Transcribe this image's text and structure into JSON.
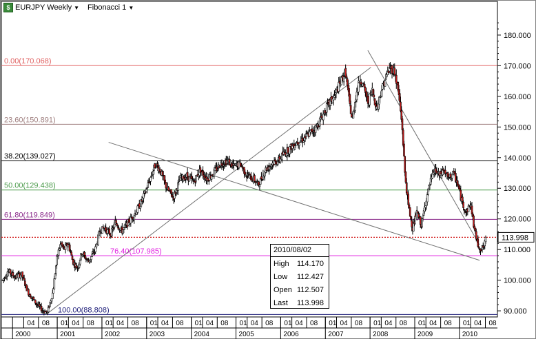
{
  "toolbar": {
    "symbol_label": "EURJPY Weekly",
    "study_label": "Fibonacci 1"
  },
  "colors": {
    "up_candle": "#ffffff",
    "down_candle": "#c81e1e",
    "fib_0": "#e06060",
    "fib_236": "#a08080",
    "fib_382": "#000000",
    "fib_50": "#4a9a4a",
    "fib_618": "#8a2a8a",
    "fib_764": "#e020e0",
    "fib_100": "#20207a",
    "last_price": "#d01010"
  },
  "infobox": {
    "date": "2010/08/02",
    "high_label": "High",
    "high": "114.170",
    "low_label": "Low",
    "low": "112.427",
    "open_label": "Open",
    "open": "112.507",
    "last_label": "Last",
    "last": "113.998"
  },
  "chart_data": {
    "type": "candlestick",
    "ylim": [
      88,
      191
    ],
    "x_range": [
      1999.75,
      2010.85
    ],
    "yticks": [
      90,
      100,
      110,
      120,
      130,
      140,
      150,
      160,
      170,
      180
    ],
    "ytick_labels": [
      "90.000",
      "100.000",
      "110.000",
      "120.000",
      "130.000",
      "140.000",
      "150.000",
      "160.000",
      "170.000",
      "180.000"
    ],
    "last_price": 113.998,
    "last_price_label": "113.998",
    "fib_levels": [
      {
        "label": "0.00(170.068)",
        "value": 170.068
      },
      {
        "label": "23.60(150.891)",
        "value": 150.891
      },
      {
        "label": "38.20(139.027)",
        "value": 139.027
      },
      {
        "label": "50.00(129.438)",
        "value": 129.438
      },
      {
        "label": "61.80(119.849)",
        "value": 119.849
      },
      {
        "label": "76.40(107.985)",
        "value": 107.985
      },
      {
        "label": "100.00(88.808)",
        "value": 88.808
      }
    ],
    "trendlines": [
      {
        "from": [
          2000.75,
          88.8
        ],
        "to": [
          2008.02,
          169.5
        ]
      },
      {
        "from": [
          2002.15,
          145.0
        ],
        "to": [
          2010.45,
          106.5
        ]
      },
      {
        "from": [
          2007.95,
          175.0
        ],
        "to": [
          2010.45,
          111.5
        ]
      }
    ],
    "path_points": [
      [
        1999.78,
        100
      ],
      [
        1999.9,
        103
      ],
      [
        2000.05,
        101
      ],
      [
        2000.2,
        102
      ],
      [
        2000.35,
        96
      ],
      [
        2000.55,
        92
      ],
      [
        2000.68,
        90
      ],
      [
        2000.78,
        89.5
      ],
      [
        2000.9,
        96
      ],
      [
        2001.0,
        108
      ],
      [
        2001.08,
        112
      ],
      [
        2001.15,
        110
      ],
      [
        2001.25,
        112
      ],
      [
        2001.35,
        106
      ],
      [
        2001.45,
        104
      ],
      [
        2001.55,
        109
      ],
      [
        2001.7,
        106
      ],
      [
        2001.85,
        110
      ],
      [
        2001.95,
        116
      ],
      [
        2002.05,
        117
      ],
      [
        2002.2,
        115
      ],
      [
        2002.3,
        119
      ],
      [
        2002.45,
        116
      ],
      [
        2002.55,
        118
      ],
      [
        2002.75,
        122
      ],
      [
        2002.9,
        126
      ],
      [
        2003.05,
        132
      ],
      [
        2003.2,
        138
      ],
      [
        2003.3,
        136
      ],
      [
        2003.45,
        130
      ],
      [
        2003.6,
        127
      ],
      [
        2003.75,
        133
      ],
      [
        2003.9,
        134
      ],
      [
        2004.05,
        132
      ],
      [
        2004.2,
        136
      ],
      [
        2004.35,
        133
      ],
      [
        2004.5,
        135
      ],
      [
        2004.65,
        138
      ],
      [
        2004.8,
        139
      ],
      [
        2004.95,
        137
      ],
      [
        2005.1,
        138
      ],
      [
        2005.25,
        134
      ],
      [
        2005.4,
        133
      ],
      [
        2005.5,
        131
      ],
      [
        2005.65,
        136
      ],
      [
        2005.8,
        138
      ],
      [
        2005.95,
        139
      ],
      [
        2006.05,
        141
      ],
      [
        2006.2,
        143
      ],
      [
        2006.35,
        145
      ],
      [
        2006.5,
        146
      ],
      [
        2006.65,
        148
      ],
      [
        2006.8,
        150
      ],
      [
        2006.95,
        154
      ],
      [
        2007.05,
        157
      ],
      [
        2007.2,
        160
      ],
      [
        2007.35,
        165
      ],
      [
        2007.45,
        168
      ],
      [
        2007.52,
        160
      ],
      [
        2007.6,
        152
      ],
      [
        2007.68,
        160
      ],
      [
        2007.78,
        166
      ],
      [
        2007.88,
        162
      ],
      [
        2007.95,
        158
      ],
      [
        2008.05,
        162
      ],
      [
        2008.15,
        156
      ],
      [
        2008.25,
        162
      ],
      [
        2008.35,
        166
      ],
      [
        2008.45,
        169.5
      ],
      [
        2008.55,
        168
      ],
      [
        2008.65,
        160
      ],
      [
        2008.72,
        150
      ],
      [
        2008.78,
        135
      ],
      [
        2008.85,
        125
      ],
      [
        2008.95,
        117
      ],
      [
        2009.05,
        122
      ],
      [
        2009.15,
        118
      ],
      [
        2009.25,
        126
      ],
      [
        2009.35,
        132
      ],
      [
        2009.45,
        136
      ],
      [
        2009.55,
        134
      ],
      [
        2009.65,
        136
      ],
      [
        2009.75,
        133
      ],
      [
        2009.85,
        135
      ],
      [
        2009.95,
        132
      ],
      [
        2010.05,
        126
      ],
      [
        2010.15,
        122
      ],
      [
        2010.25,
        125
      ],
      [
        2010.32,
        118
      ],
      [
        2010.4,
        112
      ],
      [
        2010.48,
        110
      ],
      [
        2010.55,
        111
      ],
      [
        2010.6,
        114
      ]
    ],
    "x_month_labels": [
      "04",
      "08",
      "01",
      "04",
      "08",
      "01",
      "04",
      "08",
      "01",
      "04",
      "08",
      "01",
      "04",
      "08",
      "01",
      "04",
      "08",
      "01",
      "04",
      "08",
      "01",
      "04",
      "08",
      "01",
      "04",
      "08",
      "01",
      "04",
      "08",
      "01",
      "04",
      "08",
      "01",
      "04",
      "08"
    ],
    "year_labels": [
      "2000",
      "2001",
      "2002",
      "2003",
      "2004",
      "2005",
      "2006",
      "2007",
      "2008",
      "2009",
      "2010"
    ]
  }
}
